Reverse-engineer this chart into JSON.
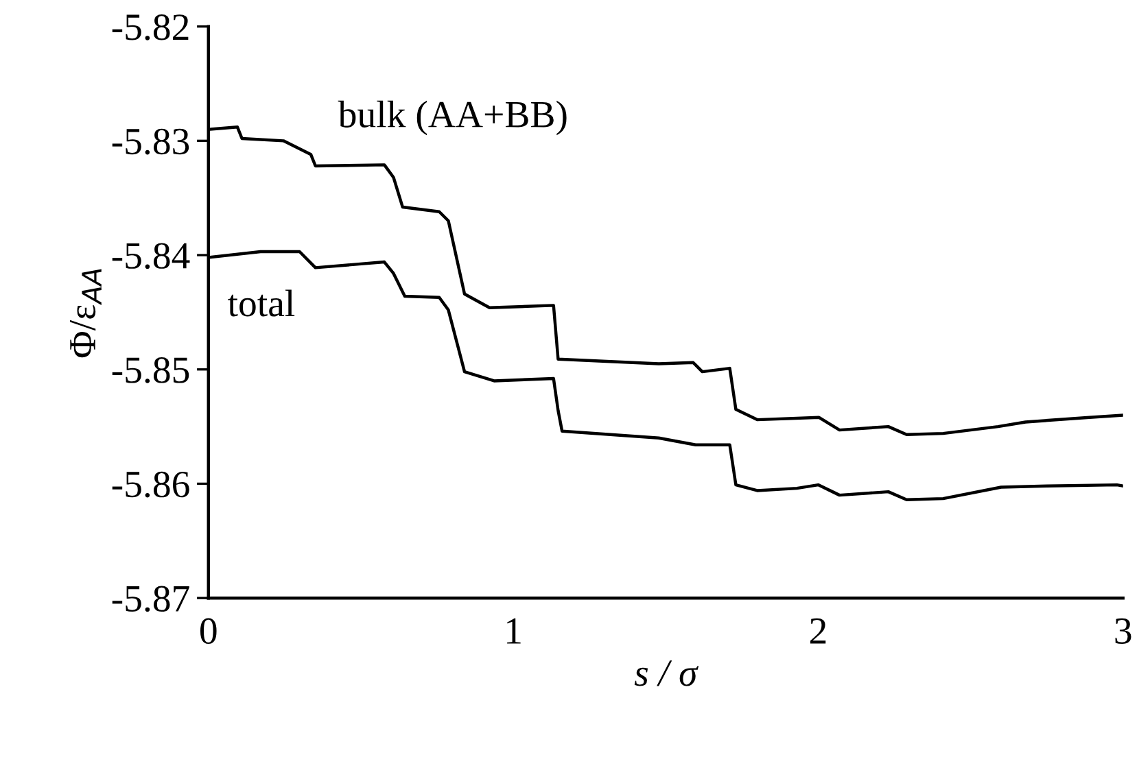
{
  "chart_data": {
    "type": "line",
    "xlabel": "s / σ",
    "ylabel": "Φ/ε$_{AA}$",
    "xlim": [
      0,
      3
    ],
    "xticks": [
      0,
      1,
      2,
      3
    ],
    "ylim": [
      -5.87,
      -5.82
    ],
    "yticks": [
      -5.87,
      -5.86,
      -5.85,
      -5.84,
      -5.83,
      -5.82
    ],
    "grid": false,
    "legend": false,
    "marker": "none",
    "line_style": "solid",
    "series": [
      {
        "name": "bulk (AA+BB)",
        "color": "#000000",
        "x": [
          0,
          0.095,
          0.11,
          0.246,
          0.336,
          0.351,
          0.577,
          0.607,
          0.637,
          0.757,
          0.787,
          0.84,
          0.922,
          1.132,
          1.147,
          1.477,
          1.59,
          1.62,
          1.71,
          1.73,
          1.8,
          2.003,
          2.07,
          2.23,
          2.29,
          2.41,
          2.59,
          2.68,
          2.89,
          3.0
        ],
        "values": [
          -5.829,
          -5.8288,
          -5.8298,
          -5.83,
          -5.8312,
          -5.8322,
          -5.8321,
          -5.8332,
          -5.8358,
          -5.8362,
          -5.837,
          -5.8434,
          -5.8446,
          -5.8444,
          -5.8491,
          -5.8495,
          -5.8494,
          -5.8502,
          -5.8499,
          -5.8535,
          -5.8544,
          -5.8542,
          -5.8553,
          -5.855,
          -5.8557,
          -5.8556,
          -5.855,
          -5.8546,
          -5.8542,
          -5.854
        ]
      },
      {
        "name": "total",
        "color": "#000000",
        "x": [
          0,
          0.171,
          0.299,
          0.351,
          0.577,
          0.607,
          0.644,
          0.757,
          0.787,
          0.84,
          0.937,
          1.132,
          1.147,
          1.16,
          1.477,
          1.598,
          1.71,
          1.73,
          1.8,
          1.93,
          2.0,
          2.07,
          2.23,
          2.29,
          2.41,
          2.6,
          2.75,
          2.98,
          3.0
        ],
        "values": [
          -5.8402,
          -5.8397,
          -5.8397,
          -5.8411,
          -5.8406,
          -5.8416,
          -5.8436,
          -5.8437,
          -5.8448,
          -5.8502,
          -5.851,
          -5.8508,
          -5.8536,
          -5.8554,
          -5.856,
          -5.8566,
          -5.8566,
          -5.8601,
          -5.8606,
          -5.8604,
          -5.8601,
          -5.861,
          -5.8607,
          -5.8614,
          -5.8613,
          -5.8603,
          -5.8602,
          -5.8601,
          -5.8602
        ]
      }
    ]
  }
}
